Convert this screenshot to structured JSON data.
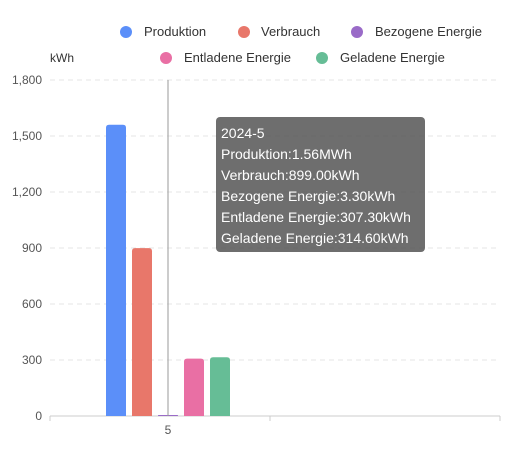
{
  "chart_data": {
    "type": "bar",
    "unit": "kWh",
    "categories": [
      "5"
    ],
    "series": [
      {
        "name": "Produktion",
        "color": "#5B8FF9",
        "values": [
          1560
        ]
      },
      {
        "name": "Verbrauch",
        "color": "#E8776A",
        "values": [
          899.0
        ]
      },
      {
        "name": "Bezogene Energie",
        "color": "#9A6BC8",
        "values": [
          3.3
        ]
      },
      {
        "name": "Entladene Energie",
        "color": "#E96FA4",
        "values": [
          307.3
        ]
      },
      {
        "name": "Geladene Energie",
        "color": "#66BD96",
        "values": [
          314.6
        ]
      }
    ],
    "yticks": [
      "0",
      "300",
      "600",
      "900",
      "1,200",
      "1,500",
      "1,800"
    ],
    "ylim": [
      0,
      1800
    ],
    "grid": true,
    "legend_position": "top"
  },
  "tooltip": {
    "title": "2024-5",
    "lines": [
      "Produktion:1.56MWh",
      "Verbrauch:899.00kWh",
      "Bezogene Energie:3.30kWh",
      "Entladene Energie:307.30kWh",
      "Geladene Energie:314.60kWh"
    ]
  }
}
